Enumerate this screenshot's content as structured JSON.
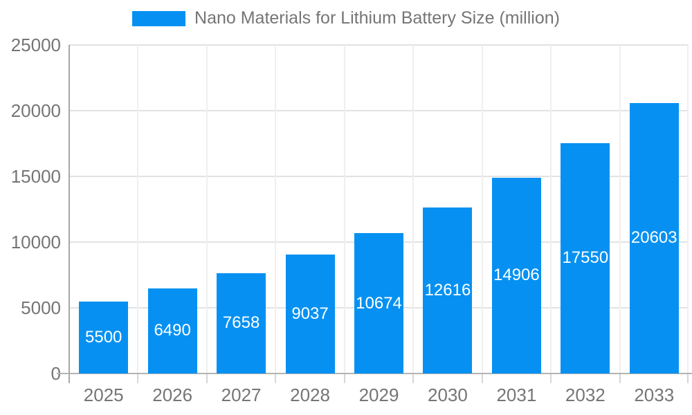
{
  "legend": {
    "label": "Nano Materials for Lithium Battery Size (million)",
    "swatch_color": "#0691F2"
  },
  "chart_data": {
    "type": "bar",
    "title": "Nano Materials for Lithium Battery Size (million)",
    "categories": [
      "2025",
      "2026",
      "2027",
      "2028",
      "2029",
      "2030",
      "2031",
      "2032",
      "2033"
    ],
    "values": [
      5500,
      6490,
      7658,
      9037,
      10674,
      12616,
      14906,
      17550,
      20603
    ],
    "xlabel": "",
    "ylabel": "",
    "ylim": [
      0,
      25000
    ],
    "yticks": [
      0,
      5000,
      10000,
      15000,
      20000,
      25000
    ],
    "ytick_labels": [
      "0",
      "5000",
      "10000",
      "15000",
      "20000",
      "25000"
    ],
    "grid": true,
    "bar_labels_shown": true,
    "legend_position": "top-center",
    "colors": {
      "bar": "#0691F2",
      "bar_label": "#ffffff",
      "axis_text": "#757575",
      "gridline_h": "#e2e2e2",
      "gridline_v": "#efefef",
      "tick": "#d6d6d6",
      "axis_line": "#a6a6a6",
      "baseline": "#b3b3b3",
      "background": "#ffffff"
    }
  }
}
